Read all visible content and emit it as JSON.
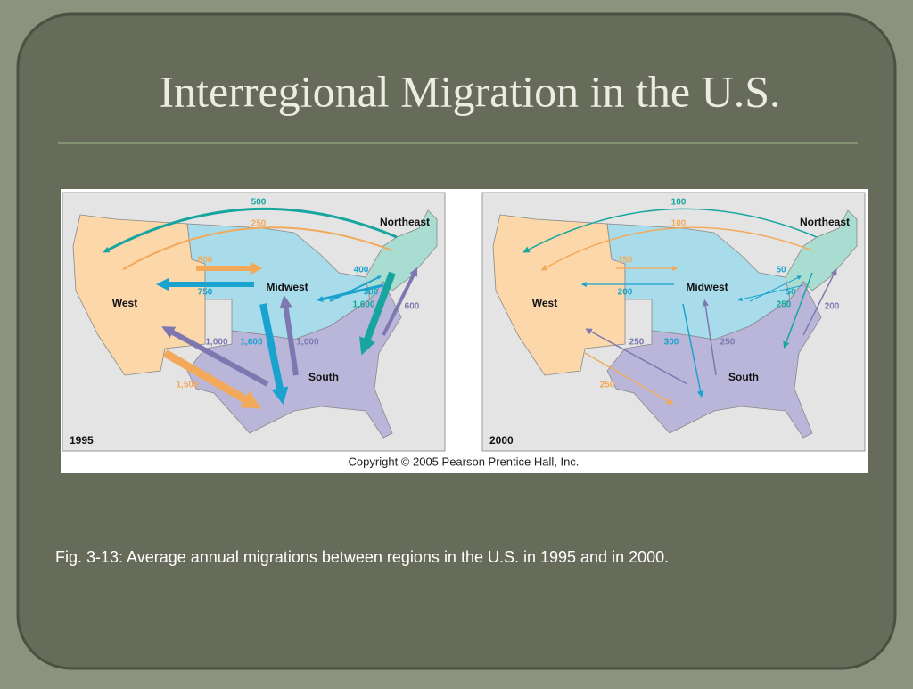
{
  "slide": {
    "title": "Interregional Migration in the U.S.",
    "figure": {
      "maps": [
        {
          "year": "1995",
          "regions": [
            "West",
            "Midwest",
            "South",
            "Northeast"
          ],
          "flows": [
            "500",
            "250",
            "800",
            "750",
            "400",
            "300",
            "1,600",
            "600",
            "1,000",
            "1,600",
            "1,000",
            "1,500"
          ]
        },
        {
          "year": "2000",
          "regions": [
            "West",
            "Midwest",
            "South",
            "Northeast"
          ],
          "flows": [
            "100",
            "100",
            "150",
            "200",
            "50",
            "50",
            "250",
            "200",
            "250",
            "300",
            "250",
            "250"
          ]
        }
      ],
      "copyright": "Copyright © 2005 Pearson Prentice Hall, Inc."
    },
    "caption": "Fig. 3-13: Average annual migrations between regions in the U.S. in 1995 and in 2000."
  }
}
